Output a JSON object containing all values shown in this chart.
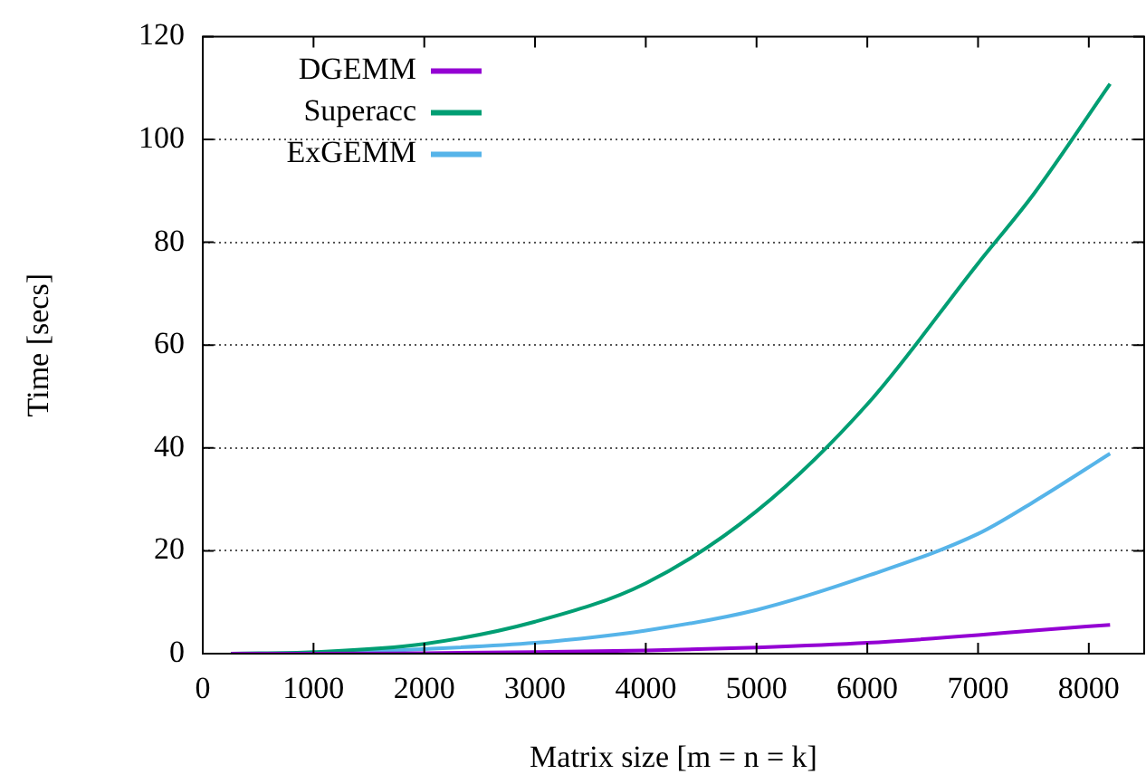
{
  "chart_data": {
    "type": "line",
    "xlabel": "Matrix size [m = n = k]",
    "ylabel": "Time [secs]",
    "xlim": [
      0,
      8500
    ],
    "xticks": [
      0,
      1000,
      2000,
      3000,
      4000,
      5000,
      6000,
      7000,
      8000
    ],
    "ylim": [
      0,
      120
    ],
    "yticks": [
      0,
      20,
      40,
      60,
      80,
      100,
      120
    ],
    "grid": "y",
    "legend": "top left",
    "marker": "none",
    "line_style": "solid",
    "series": [
      {
        "name": "DGEMM",
        "color": "#9400d3",
        "x": [
          256,
          1000,
          2000,
          3000,
          4000,
          5000,
          6000,
          7000,
          7500,
          8192
        ],
        "values": [
          0,
          0,
          0.1,
          0.3,
          0.6,
          1.2,
          2.1,
          3.6,
          4.5,
          5.6
        ]
      },
      {
        "name": "Superacc",
        "color": "#009e73",
        "x": [
          256,
          1000,
          2000,
          3000,
          4000,
          5000,
          6000,
          7000,
          7500,
          8192
        ],
        "values": [
          0,
          0.3,
          1.9,
          6.2,
          13.7,
          27.7,
          48.5,
          75.9,
          89.3,
          110.8
        ]
      },
      {
        "name": "ExGEMM",
        "color": "#56b4e9",
        "x": [
          256,
          1000,
          2000,
          3000,
          4000,
          5000,
          6000,
          7000,
          7500,
          8192
        ],
        "values": [
          0,
          0.1,
          0.9,
          2.1,
          4.5,
          8.5,
          15.1,
          23.3,
          29.5,
          38.9
        ]
      }
    ]
  }
}
